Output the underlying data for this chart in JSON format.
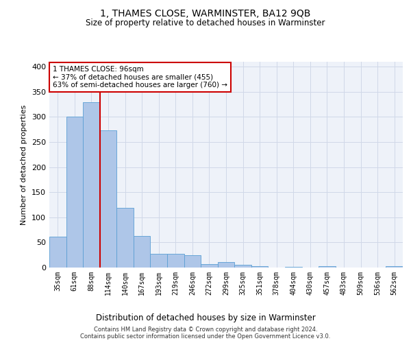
{
  "title": "1, THAMES CLOSE, WARMINSTER, BA12 9QB",
  "subtitle": "Size of property relative to detached houses in Warminster",
  "xlabel": "Distribution of detached houses by size in Warminster",
  "ylabel": "Number of detached properties",
  "categories": [
    "35sqm",
    "61sqm",
    "88sqm",
    "114sqm",
    "140sqm",
    "167sqm",
    "193sqm",
    "219sqm",
    "246sqm",
    "272sqm",
    "299sqm",
    "325sqm",
    "351sqm",
    "378sqm",
    "404sqm",
    "430sqm",
    "457sqm",
    "483sqm",
    "509sqm",
    "536sqm",
    "562sqm"
  ],
  "values": [
    62,
    300,
    330,
    273,
    119,
    63,
    28,
    27,
    25,
    7,
    11,
    5,
    3,
    0,
    1,
    0,
    3,
    0,
    0,
    0,
    3
  ],
  "bar_color": "#aec6e8",
  "bar_edge_color": "#5a9fd4",
  "grid_color": "#d0d8e8",
  "background_color": "#eef2f9",
  "red_line_x": 2.5,
  "annotation_text": "1 THAMES CLOSE: 96sqm\n← 37% of detached houses are smaller (455)\n63% of semi-detached houses are larger (760) →",
  "annotation_box_color": "#ffffff",
  "annotation_box_edge_color": "#cc0000",
  "ylim": [
    0,
    410
  ],
  "yticks": [
    0,
    50,
    100,
    150,
    200,
    250,
    300,
    350,
    400
  ],
  "footer_line1": "Contains HM Land Registry data © Crown copyright and database right 2024.",
  "footer_line2": "Contains public sector information licensed under the Open Government Licence v3.0."
}
